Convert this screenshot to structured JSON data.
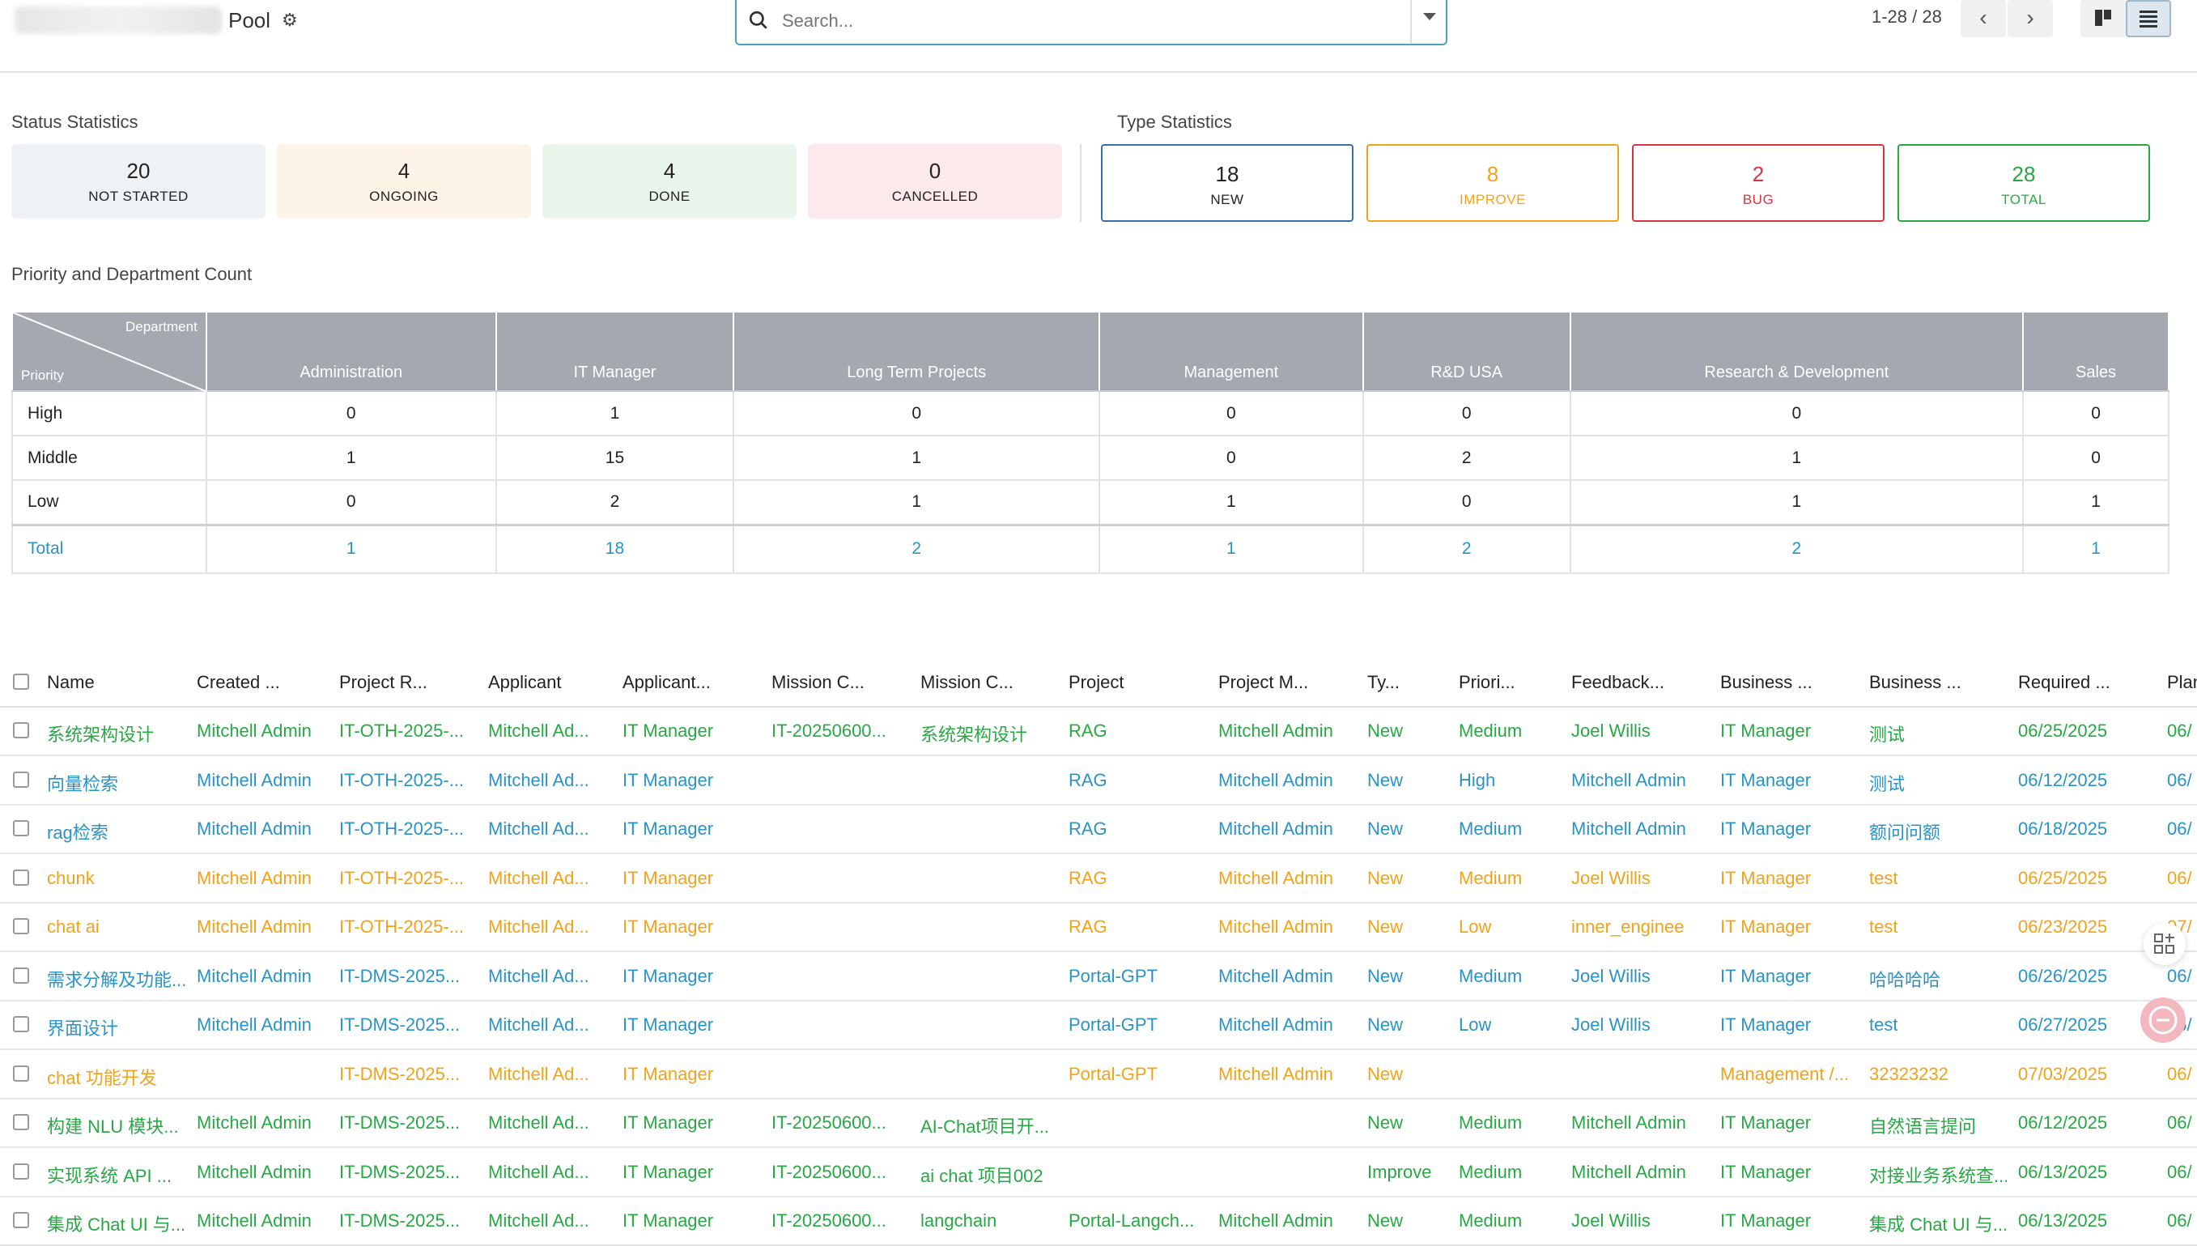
{
  "header": {
    "title": "Pool",
    "search_placeholder": "Search...",
    "pager": "1-28 / 28"
  },
  "status_stats": {
    "label": "Status Statistics",
    "cards": [
      {
        "value": "20",
        "label": "NOT STARTED",
        "color": "#eef2f5"
      },
      {
        "value": "4",
        "label": "ONGOING",
        "color": "#fdf3e7"
      },
      {
        "value": "4",
        "label": "DONE",
        "color": "#e9f4ea"
      },
      {
        "value": "0",
        "label": "CANCELLED",
        "color": "#fbe9eb"
      }
    ]
  },
  "type_stats": {
    "label": "Type Statistics",
    "cards": [
      {
        "value": "18",
        "label": "NEW",
        "color": "#3b6fa8"
      },
      {
        "value": "8",
        "label": "IMPROVE",
        "color": "#f0a31a"
      },
      {
        "value": "2",
        "label": "BUG",
        "color": "#d9343f"
      },
      {
        "value": "28",
        "label": "TOTAL",
        "color": "#28a745"
      }
    ]
  },
  "pivot": {
    "label": "Priority and Department Count",
    "corner_top": "Department",
    "corner_bottom": "Priority",
    "columns": [
      "Administration",
      "IT Manager",
      "Long Term Projects",
      "Management",
      "R&D USA",
      "Research & Development",
      "Sales"
    ],
    "rows": [
      {
        "label": "High",
        "values": [
          "0",
          "1",
          "0",
          "0",
          "0",
          "0",
          "0"
        ]
      },
      {
        "label": "Middle",
        "values": [
          "1",
          "15",
          "1",
          "0",
          "2",
          "1",
          "0"
        ]
      },
      {
        "label": "Low",
        "values": [
          "0",
          "2",
          "1",
          "1",
          "0",
          "1",
          "1"
        ]
      }
    ],
    "total": {
      "label": "Total",
      "values": [
        "1",
        "18",
        "2",
        "1",
        "2",
        "2",
        "1"
      ]
    }
  },
  "list": {
    "headers": [
      "Name",
      "Created ...",
      "Project R...",
      "Applicant",
      "Applicant...",
      "Mission C...",
      "Mission C...",
      "Project",
      "Project M...",
      "Ty...",
      "Priori...",
      "Feedback...",
      "Business ...",
      "Business ...",
      "Required ...",
      "Plan"
    ],
    "rows": [
      {
        "color": "g",
        "cells": [
          "系统架构设计",
          "Mitchell Admin",
          "IT-OTH-2025-...",
          "Mitchell Ad...",
          "IT Manager",
          "IT-20250600...",
          "系统架构设计",
          "RAG",
          "Mitchell Admin",
          "New",
          "Medium",
          "Joel Willis",
          "IT Manager",
          "测试",
          "06/25/2025",
          "06/"
        ]
      },
      {
        "color": "b",
        "cells": [
          "向量检索",
          "Mitchell Admin",
          "IT-OTH-2025-...",
          "Mitchell Ad...",
          "IT Manager",
          "",
          "",
          "RAG",
          "Mitchell Admin",
          "New",
          "High",
          "Mitchell Admin",
          "IT Manager",
          "测试",
          "06/12/2025",
          "06/"
        ]
      },
      {
        "color": "b",
        "cells": [
          "rag检索",
          "Mitchell Admin",
          "IT-OTH-2025-...",
          "Mitchell Ad...",
          "IT Manager",
          "",
          "",
          "RAG",
          "Mitchell Admin",
          "New",
          "Medium",
          "Mitchell Admin",
          "IT Manager",
          "额问问额",
          "06/18/2025",
          "06/"
        ]
      },
      {
        "color": "o",
        "cells": [
          "chunk",
          "Mitchell Admin",
          "IT-OTH-2025-...",
          "Mitchell Ad...",
          "IT Manager",
          "",
          "",
          "RAG",
          "Mitchell Admin",
          "New",
          "Medium",
          "Joel Willis",
          "IT Manager",
          "test",
          "06/25/2025",
          "06/"
        ]
      },
      {
        "color": "o",
        "cells": [
          "chat ai",
          "Mitchell Admin",
          "IT-OTH-2025-...",
          "Mitchell Ad...",
          "IT Manager",
          "",
          "",
          "RAG",
          "Mitchell Admin",
          "New",
          "Low",
          "inner_enginee",
          "IT Manager",
          "test",
          "06/23/2025",
          "07/"
        ]
      },
      {
        "color": "b",
        "cells": [
          "需求分解及功能...",
          "Mitchell Admin",
          "IT-DMS-2025...",
          "Mitchell Ad...",
          "IT Manager",
          "",
          "",
          "Portal-GPT",
          "Mitchell Admin",
          "New",
          "Medium",
          "Joel Willis",
          "IT Manager",
          "哈哈哈哈",
          "06/26/2025",
          "06/"
        ]
      },
      {
        "color": "b",
        "cells": [
          "界面设计",
          "Mitchell Admin",
          "IT-DMS-2025...",
          "Mitchell Ad...",
          "IT Manager",
          "",
          "",
          "Portal-GPT",
          "Mitchell Admin",
          "New",
          "Low",
          "Joel Willis",
          "IT Manager",
          "test",
          "06/27/2025",
          "06/"
        ]
      },
      {
        "color": "o",
        "cells": [
          "chat 功能开发",
          "",
          "IT-DMS-2025...",
          "Mitchell Ad...",
          "IT Manager",
          "",
          "",
          "Portal-GPT",
          "Mitchell Admin",
          "New",
          "",
          "",
          "Management /...",
          "32323232",
          "07/03/2025",
          "06/"
        ]
      },
      {
        "color": "g",
        "cells": [
          "构建 NLU 模块...",
          "Mitchell Admin",
          "IT-DMS-2025...",
          "Mitchell Ad...",
          "IT Manager",
          "IT-20250600...",
          "AI-Chat项目开...",
          "",
          "",
          "New",
          "Medium",
          "Mitchell Admin",
          "IT Manager",
          "自然语言提问",
          "06/12/2025",
          "06/"
        ]
      },
      {
        "color": "g",
        "cells": [
          "实现系统 API ...",
          "Mitchell Admin",
          "IT-DMS-2025...",
          "Mitchell Ad...",
          "IT Manager",
          "IT-20250600...",
          "ai chat 项目002",
          "",
          "",
          "Improve",
          "Medium",
          "Mitchell Admin",
          "IT Manager",
          "对接业务系统查...",
          "06/13/2025",
          "06/"
        ]
      },
      {
        "color": "g",
        "cells": [
          "集成 Chat UI 与...",
          "Mitchell Admin",
          "IT-DMS-2025...",
          "Mitchell Ad...",
          "IT Manager",
          "IT-20250600...",
          "langchain",
          "Portal-Langch...",
          "Mitchell Admin",
          "New",
          "Medium",
          "Joel Willis",
          "IT Manager",
          "集成 Chat UI 与...",
          "06/13/2025",
          "06/"
        ]
      }
    ]
  }
}
